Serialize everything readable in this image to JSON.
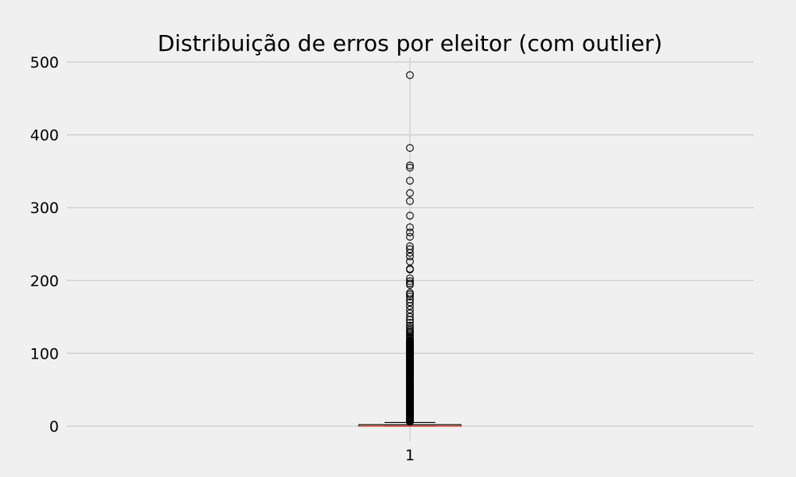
{
  "chart_data": {
    "type": "boxplot",
    "title": "Distribuição de erros por eleitor (com outlier)",
    "xlabel": "",
    "ylabel": "",
    "categories": [
      "1"
    ],
    "ylim": [
      -5,
      505
    ],
    "yticks": [
      0,
      100,
      200,
      300,
      400,
      500
    ],
    "grid": true,
    "median_color": "#e5533c",
    "series": [
      {
        "category": "1",
        "whisker_low": 0,
        "q1": 0,
        "median": 0,
        "q3": 2,
        "whisker_high": 5,
        "outliers_sampled": [
          482,
          382,
          358,
          355,
          337,
          320,
          309,
          289,
          273,
          266,
          260,
          247,
          243,
          238,
          233,
          226,
          216,
          215,
          203,
          199,
          196,
          194,
          183,
          181,
          178,
          174,
          170,
          165,
          160,
          155,
          150,
          146,
          142,
          138,
          135,
          132,
          130,
          128,
          126,
          124,
          122,
          120
        ],
        "outlier_dense_range": [
          6,
          118
        ]
      }
    ]
  }
}
